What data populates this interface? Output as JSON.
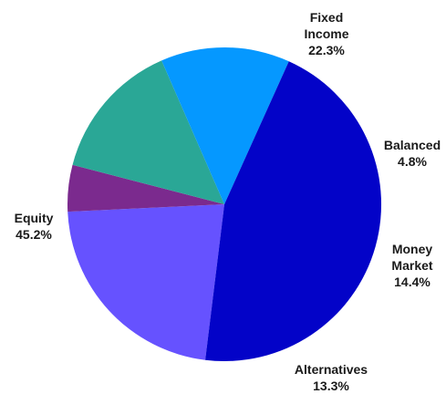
{
  "chart_data": {
    "type": "pie",
    "title": "",
    "start_angle_deg": 187,
    "direction": "clockwise",
    "slices": [
      {
        "label": [
          "Fixed",
          "Income"
        ],
        "value": 22.3,
        "value_label": "22.3%",
        "color": "#6652FF"
      },
      {
        "label": [
          "Balanced"
        ],
        "value": 4.8,
        "value_label": "4.8%",
        "color": "#7B2A8E"
      },
      {
        "label": [
          "Money",
          "Market"
        ],
        "value": 14.4,
        "value_label": "14.4%",
        "color": "#2AA796"
      },
      {
        "label": [
          "Alternatives"
        ],
        "value": 13.3,
        "value_label": "13.3%",
        "color": "#0598FF"
      },
      {
        "label": [
          "Equity"
        ],
        "value": 45.2,
        "value_label": "45.2%",
        "color": "#0303C8"
      }
    ]
  }
}
